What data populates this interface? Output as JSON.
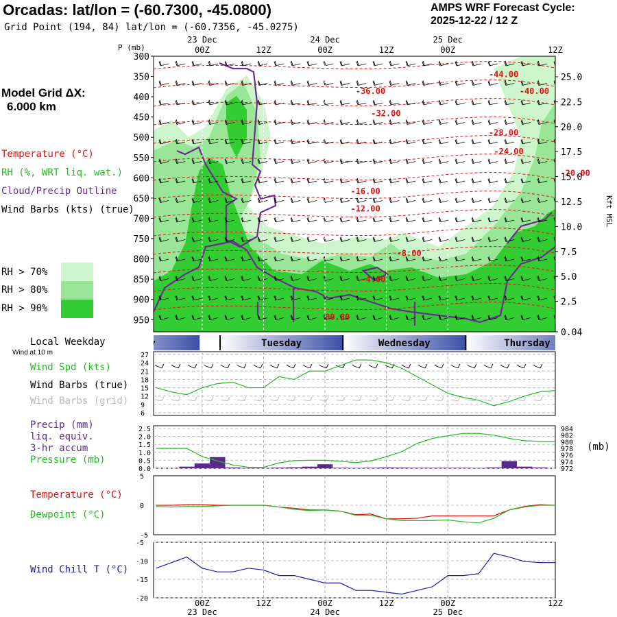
{
  "header": {
    "title": "Orcadas:  lat/lon = (-60.7300, -45.0800)",
    "gridpoint": "Grid Point (194, 84) lat/lon = (-60.7356, -45.0275)",
    "cycle_line1": "AMPS WRF Forecast Cycle:",
    "cycle_line2": "2025-12-22 / 12  Z"
  },
  "model_grid": {
    "label": "Model Grid ΔX:",
    "value": "6.000 km"
  },
  "legend_upper": {
    "temperature": "Temperature (°C)",
    "rh": "RH (%, WRT liq. wat.)",
    "cloud": "Cloud/Precip Outline",
    "wind": "Wind Barbs (kts) (true)",
    "rh70": "RH > 70%",
    "rh80": "RH > 80%",
    "rh90": "RH > 90%"
  },
  "colors": {
    "temperature": "#e01010",
    "rh70": "#ccf5cc",
    "rh80": "#99e699",
    "rh90": "#33cc33",
    "cloud": "#6a2c91",
    "windspd": "#22bb22",
    "precip": "#5a2a8a",
    "pressure": "#22bb22",
    "dewpoint": "#22bb22",
    "windchill": "#1a1aa8"
  },
  "time_axis": {
    "top_dates": [
      "23 Dec",
      "24 Dec",
      "25 Dec"
    ],
    "ticks": [
      "00Z",
      "12Z",
      "00Z",
      "12Z",
      "00Z",
      "12Z"
    ],
    "bottom_dates": [
      "23 Dec",
      "24 Dec",
      "25 Dec"
    ]
  },
  "weekday_bar": {
    "label": "Local Weekday",
    "days": [
      "Monday",
      "Tuesday",
      "Wednesday",
      "Thursday"
    ],
    "wind_at": "Wind at 10 m"
  },
  "chart_data": [
    {
      "type": "heatmap",
      "name": "cross-section",
      "y_axis_left": {
        "label": "P (mb)",
        "ticks": [
          "300",
          "350",
          "400",
          "450",
          "500",
          "550",
          "600",
          "650",
          "700",
          "750",
          "800",
          "850",
          "900",
          "950"
        ]
      },
      "y_axis_right": {
        "label": "Kft MSL",
        "ticks": [
          "25.0",
          "22.5",
          "20.0",
          "17.5",
          "15.0",
          "12.5",
          "10.0",
          "7.5",
          "5.0",
          "2.5",
          "0.04"
        ]
      },
      "temperature_contours": [
        {
          "label": "-44.00",
          "hour": 56,
          "p": 352
        },
        {
          "label": "-40.00",
          "hour": 62,
          "p": 393
        },
        {
          "label": "-36.00",
          "hour": 30,
          "p": 393
        },
        {
          "label": "-32.00",
          "hour": 33,
          "p": 448
        },
        {
          "label": "-28.00",
          "hour": 56,
          "p": 495
        },
        {
          "label": "-24.00",
          "hour": 57,
          "p": 542
        },
        {
          "label": "-20.00",
          "hour": 70,
          "p": 595
        },
        {
          "label": "-16.00",
          "hour": 29,
          "p": 640
        },
        {
          "label": "-12.00",
          "hour": 29,
          "p": 683
        },
        {
          "label": "-8.00",
          "hour": 38,
          "p": 793
        },
        {
          "label": "-4.00",
          "hour": 31,
          "p": 857
        },
        {
          "label": "00.00",
          "hour": 24,
          "p": 950
        }
      ]
    },
    {
      "type": "line",
      "name": "wind-speed",
      "ylabel": "Wind Spd (kts)",
      "labels": {
        "barbs_true": "Wind Barbs (true)",
        "barbs_grid": "Wind Barbs (grid)"
      },
      "yticks": [
        "27",
        "24",
        "21",
        "18",
        "15",
        "12",
        "9",
        "6"
      ],
      "ylim": [
        6,
        27
      ],
      "x_hours": [
        -9,
        -6,
        -3,
        0,
        3,
        6,
        9,
        12,
        15,
        18,
        21,
        24,
        27,
        30,
        33,
        36,
        39,
        42,
        45,
        48,
        51,
        54,
        57,
        60,
        63,
        66,
        69
      ],
      "values": [
        15,
        13.5,
        12.5,
        15,
        16.5,
        17,
        15,
        15,
        19,
        18,
        21,
        21,
        23,
        25,
        25,
        24,
        22,
        19,
        16,
        13,
        11.5,
        10.5,
        8.5,
        10,
        12,
        13.5,
        14
      ]
    },
    {
      "type": "bar",
      "name": "precip-pressure",
      "ylabel": "Precip (mm)",
      "labels": [
        "liq. equiv.",
        "3-hr accum",
        "Pressure (mb)"
      ],
      "unit_right": "(mb)",
      "yticks_left": [
        "2.5",
        "2.0",
        "1.5",
        "1.0",
        "0.5",
        "0.0"
      ],
      "yticks_right": [
        "984",
        "982",
        "980",
        "978",
        "976",
        "974",
        "972"
      ],
      "ylim": [
        0,
        2.5
      ],
      "ylim_right": [
        972,
        984
      ],
      "precip_hours": [
        -3,
        0,
        3,
        6,
        9,
        12,
        15,
        18,
        21,
        24,
        27,
        30,
        33,
        36,
        39,
        42,
        45,
        48,
        51,
        54,
        57,
        60,
        63,
        66
      ],
      "precip": [
        0.1,
        0.3,
        0.7,
        0.05,
        0.02,
        0.02,
        0.04,
        0.06,
        0.1,
        0.25,
        0.03,
        0.02,
        0.03,
        0.05,
        0.04,
        0.03,
        0.03,
        0.03,
        0.03,
        0.02,
        0.05,
        0.45,
        0.1,
        0.05
      ],
      "pressure_hours": [
        -9,
        -6,
        -3,
        0,
        3,
        6,
        9,
        12,
        15,
        18,
        21,
        24,
        27,
        30,
        33,
        36,
        39,
        42,
        45,
        48,
        51,
        54,
        57,
        60,
        63,
        66,
        69
      ],
      "pressure": [
        978,
        978,
        978,
        975.5,
        974.2,
        973,
        972.3,
        972.3,
        973.6,
        974.3,
        974.4,
        974.4,
        974.1,
        973.7,
        974.2,
        975.5,
        977,
        979.5,
        981,
        981.8,
        982.5,
        982.5,
        982,
        981,
        980.3,
        980.1,
        980.1
      ]
    },
    {
      "type": "line",
      "name": "temp-dewpoint",
      "labels": {
        "temperature": "Temperature (°C)",
        "dewpoint": "Dewpoint (°C)"
      },
      "yticks": [
        "5",
        "0",
        "-5"
      ],
      "ylim": [
        -5,
        5
      ],
      "x_hours": [
        -9,
        -6,
        -3,
        0,
        3,
        6,
        9,
        12,
        15,
        18,
        21,
        24,
        27,
        30,
        33,
        36,
        39,
        42,
        45,
        48,
        51,
        54,
        57,
        60,
        63,
        66,
        69
      ],
      "temperature": [
        0,
        0,
        0.1,
        0.1,
        0,
        0,
        0,
        0,
        -0.3,
        -0.5,
        -0.8,
        -0.8,
        -1,
        -1.6,
        -1.5,
        -2.3,
        -2.3,
        -2.2,
        -1.8,
        -1.8,
        -1.8,
        -1.8,
        -1.8,
        -0.8,
        -0.2,
        0.1,
        0
      ],
      "dewpoint": [
        -0.2,
        -0.3,
        -0.2,
        -0.2,
        -0.1,
        0,
        0,
        0,
        -0.3,
        -0.7,
        -0.9,
        -0.8,
        -1,
        -1.7,
        -1.7,
        -2.3,
        -2.6,
        -2.6,
        -2.6,
        -2.5,
        -2.8,
        -3,
        -2.2,
        -0.8,
        -0.3,
        0,
        0
      ]
    },
    {
      "type": "line",
      "name": "wind-chill",
      "ylabel": "Wind Chill T (°C)",
      "yticks": [
        "-5",
        "-10",
        "-15",
        "-20"
      ],
      "ylim": [
        -20,
        -5
      ],
      "x_hours": [
        -9,
        -6,
        -3,
        0,
        3,
        6,
        9,
        12,
        15,
        18,
        21,
        24,
        27,
        30,
        33,
        36,
        39,
        42,
        45,
        48,
        51,
        54,
        57,
        60,
        63,
        66,
        69
      ],
      "values": [
        -12,
        -10.5,
        -9,
        -12,
        -13,
        -13,
        -12,
        -12.5,
        -14,
        -14,
        -15,
        -16,
        -16,
        -18,
        -18,
        -18.5,
        -19,
        -18,
        -17,
        -14,
        -14,
        -13.5,
        -8,
        -9,
        -10.2,
        -10.5,
        -10.5
      ]
    }
  ]
}
